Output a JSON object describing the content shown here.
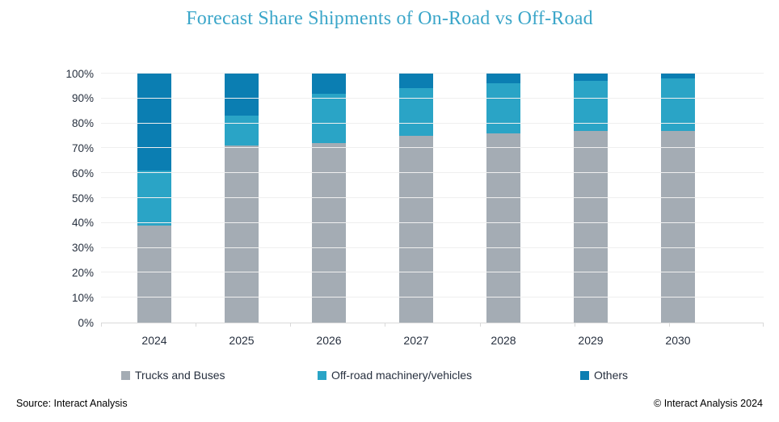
{
  "title": "Forecast Share Shipments of On-Road vs Off-Road",
  "footer": {
    "source": "Source: Interact Analysis",
    "copyright": "© Interact Analysis 2024"
  },
  "colors": {
    "title": "#3BA6C9",
    "axis_text": "#27303F",
    "gridline": "#EFEFEF",
    "axis_line": "#D9D9D9"
  },
  "chart_data": {
    "type": "bar",
    "stacked": true,
    "title": "Forecast Share Shipments of On-Road vs Off-Road",
    "categories": [
      "2024",
      "2025",
      "2026",
      "2027",
      "2028",
      "2029",
      "2030"
    ],
    "series": [
      {
        "name": "Trucks and Buses",
        "color": "#A4ACB4",
        "values": [
          39,
          71,
          72,
          75,
          76,
          77,
          77
        ]
      },
      {
        "name": "Off-road machinery/vehicles",
        "color": "#2AA4C6",
        "values": [
          22,
          12,
          20,
          19,
          20,
          20,
          21
        ]
      },
      {
        "name": "Others",
        "color": "#0B7EB2",
        "values": [
          39,
          17,
          8,
          6,
          4,
          3,
          2
        ]
      }
    ],
    "y_ticks": [
      "0%",
      "10%",
      "20%",
      "30%",
      "40%",
      "50%",
      "60%",
      "70%",
      "80%",
      "90%",
      "100%"
    ],
    "ylim": [
      0,
      100
    ],
    "unit": "%",
    "grid": true,
    "legend_position": "bottom",
    "xlabel": "",
    "ylabel": ""
  }
}
